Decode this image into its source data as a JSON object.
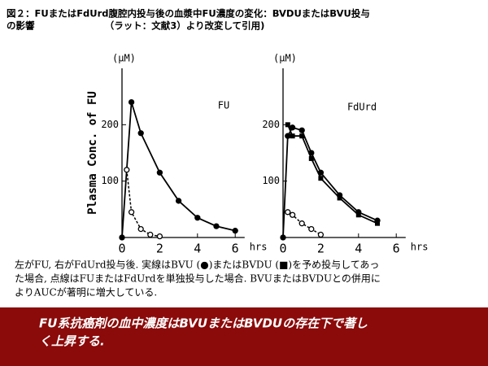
{
  "header": {
    "lines": [
      "図２：FUまたはFdUrd腹腔内投与後の血漿中FU濃度の変化：BVDUまたはBVU投与",
      "の影響　　　　　　　　（ラット：文献3）より改変して引用)"
    ]
  },
  "chart_data": [
    {
      "type": "line",
      "annotation": "FU",
      "y_unit": "(μM)",
      "ylabel": "Plasma Conc. of FU",
      "xlabel": "hrs",
      "xlim": [
        0,
        6.5
      ],
      "xticks": [
        0,
        2,
        4,
        6
      ],
      "ylim": [
        0,
        300
      ],
      "yticks": [
        100,
        200
      ],
      "series": [
        {
          "color": "#000000",
          "dash": false,
          "marker": "circle-filled",
          "x": [
            0,
            0.5,
            1,
            2,
            3,
            4,
            5,
            6
          ],
          "values": [
            0,
            240,
            185,
            115,
            65,
            35,
            20,
            12
          ]
        },
        {
          "color": "#000000",
          "dash": true,
          "marker": "circle-open",
          "x": [
            0.25,
            0.5,
            1,
            1.5,
            2
          ],
          "values": [
            120,
            45,
            15,
            5,
            2
          ]
        }
      ]
    },
    {
      "type": "line",
      "annotation": "FdUrd",
      "y_unit": "(μM)",
      "xlabel": "hrs",
      "xlim": [
        0,
        6.5
      ],
      "xticks": [
        0,
        2,
        4,
        6
      ],
      "ylim": [
        0,
        300
      ],
      "yticks": [
        100,
        200
      ],
      "series": [
        {
          "color": "#000000",
          "dash": false,
          "marker": "circle-filled",
          "x": [
            0,
            0.25,
            0.5,
            1,
            1.5,
            2,
            3,
            4,
            5
          ],
          "values": [
            0,
            180,
            195,
            190,
            150,
            115,
            75,
            45,
            30
          ]
        },
        {
          "color": "#000000",
          "dash": false,
          "marker": "square-filled",
          "x": [
            0.25,
            0.5,
            1,
            1.5,
            2,
            3,
            4,
            5
          ],
          "values": [
            200,
            180,
            180,
            140,
            105,
            70,
            40,
            25
          ]
        },
        {
          "color": "#000000",
          "dash": true,
          "marker": "circle-open",
          "x": [
            0.25,
            0.5,
            1,
            1.5,
            2
          ],
          "values": [
            45,
            40,
            25,
            15,
            5
          ]
        }
      ]
    }
  ],
  "caption": {
    "lines": [
      "左がFU, 右がFdUrd投与後. 実線はBVU (●)またはBVDU (■)を予め投与してあっ",
      "た場合, 点線はFUまたはFdUrdを単独投与した場合. BVUまたはBVDUとの併用に",
      "よりAUCが著明に増大している."
    ]
  },
  "footer": {
    "lines": [
      "FU系抗癌剤の血中濃度はBVUまたはBVDUの存在下で著し",
      "く上昇する."
    ]
  }
}
